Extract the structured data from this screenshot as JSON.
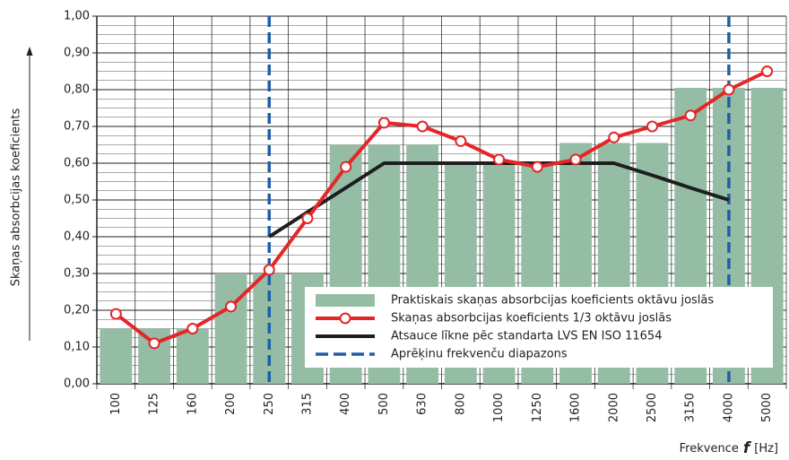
{
  "chart_data": {
    "type": "combo",
    "ylabel": "Skaņas absorbcijas koeficients",
    "xlabel": [
      "Frekvence",
      "f",
      "[Hz]"
    ],
    "categories": [
      "100",
      "125",
      "160",
      "200",
      "250",
      "315",
      "400",
      "500",
      "630",
      "800",
      "1000",
      "1250",
      "1600",
      "2000",
      "2500",
      "3150",
      "4000",
      "5000"
    ],
    "series": [
      {
        "name": "Praktiskais skaņas absorbcijas koeficients oktāvu joslās",
        "color": "#95bda5",
        "type": "bar",
        "values": [
          0.15,
          0.15,
          0.15,
          0.3,
          0.3,
          0.3,
          0.65,
          0.65,
          0.65,
          0.6,
          0.6,
          0.6,
          0.655,
          0.655,
          0.655,
          0.805,
          0.805,
          0.805
        ]
      },
      {
        "name": "Skaņas absorbcijas koeficients 1/3 oktāvu joslās",
        "color": "#e52528",
        "type": "line",
        "markers": true,
        "values": [
          0.19,
          0.11,
          0.15,
          0.21,
          0.31,
          0.45,
          0.59,
          0.71,
          0.7,
          0.66,
          0.61,
          0.59,
          0.61,
          0.67,
          0.7,
          0.73,
          0.8,
          0.85
        ]
      },
      {
        "name": "Atsauce līkne pēc standarta LVS EN ISO 11654",
        "color": "#1e1e1e",
        "type": "line",
        "values": [
          null,
          null,
          null,
          null,
          0.4,
          0.467,
          0.533,
          0.6,
          0.6,
          0.6,
          0.6,
          0.6,
          0.6,
          0.6,
          0.567,
          0.533,
          0.5,
          null
        ]
      }
    ],
    "range": {
      "name": "Aprēķinu frekvenču diapazons",
      "color": "#1f5ea8",
      "categories": [
        "250",
        "4000"
      ]
    },
    "ylim": [
      0,
      1
    ],
    "yticks": [
      {
        "value": 0,
        "label": "0,00"
      },
      {
        "value": 0.1,
        "label": "0,10"
      },
      {
        "value": 0.2,
        "label": "0,20"
      },
      {
        "value": 0.3,
        "label": "0,30"
      },
      {
        "value": 0.4,
        "label": "0,40"
      },
      {
        "value": 0.5,
        "label": "0,50"
      },
      {
        "value": 0.6,
        "label": "0,60"
      },
      {
        "value": 0.7,
        "label": "0,70"
      },
      {
        "value": 0.8,
        "label": "0,80"
      },
      {
        "value": 0.9,
        "label": "0,90"
      },
      {
        "value": 1,
        "label": "1,00"
      }
    ],
    "grid": true,
    "minor_grid_step": 0.025,
    "legend": "lower right"
  }
}
